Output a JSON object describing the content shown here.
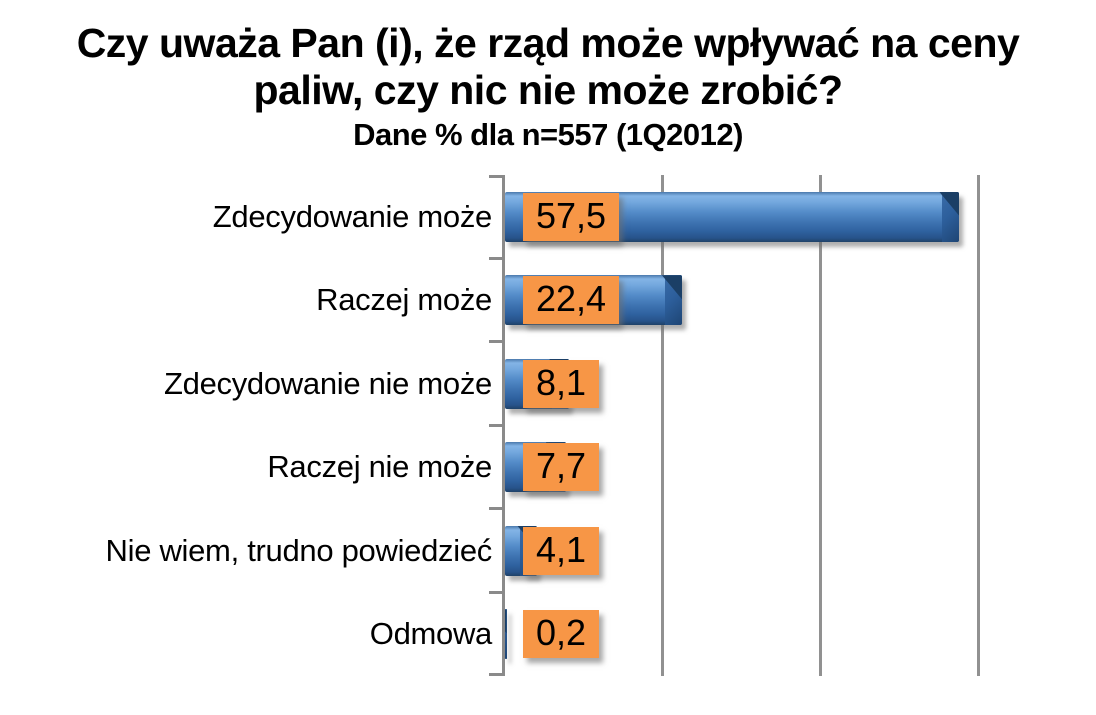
{
  "header": {
    "title_line1": "Czy uważa Pan (i), że rząd może wpływać na ceny",
    "title_line2": "paliw, czy nic nie może zrobić?",
    "subtitle": "Dane % dla n=557 (1Q2012)"
  },
  "chart_data": {
    "type": "bar",
    "orientation": "horizontal",
    "title": "Czy uważa Pan (i), że rząd może wpływać na ceny paliw, czy nic nie może zrobić?",
    "subtitle": "Dane % dla n=557 (1Q2012)",
    "categories": [
      "Zdecydowanie może",
      "Raczej może",
      "Zdecydowanie nie może",
      "Raczej nie może",
      "Nie wiem, trudno powiedzieć",
      "Odmowa"
    ],
    "values": [
      57.5,
      22.4,
      8.1,
      7.7,
      4.1,
      0.2
    ],
    "value_labels": [
      "57,5",
      "22,4",
      "8,1",
      "7,7",
      "4,1",
      "0,2"
    ],
    "xlim": [
      0,
      60
    ],
    "gridlines": [
      20,
      40,
      60
    ],
    "grid": true,
    "legend": false,
    "colors": {
      "bar": "#3F74B2",
      "bar_highlight": "#83B4E6",
      "bar_shadow_end": "#1E4574",
      "value_label_box": "#F79646",
      "value_label_text": "#000000",
      "axis_gridline": "#8A8A8A",
      "text": "#000000",
      "background": "#FFFFFF"
    }
  }
}
